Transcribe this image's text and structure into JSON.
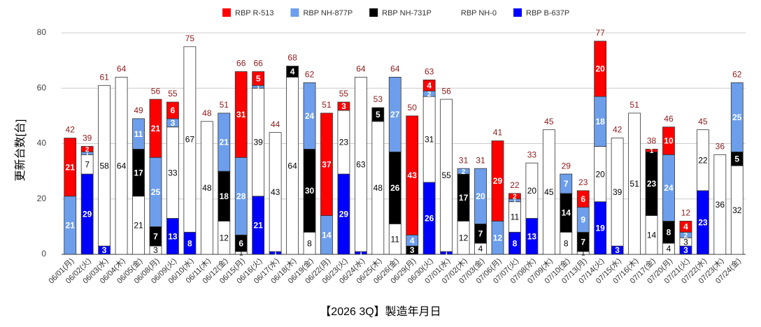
{
  "chart_data": {
    "type": "stacked-bar",
    "x_label": "【2026 3Q】製造年月日",
    "y_label": "更新台数[台]",
    "categories": [
      "06/01(月)",
      "06/02(火)",
      "06/03(水)",
      "06/04(木)",
      "06/05(金)",
      "06/08(月)",
      "06/09(火)",
      "06/10(水)",
      "06/11(木)",
      "06/12(金)",
      "06/15(月)",
      "06/16(火)",
      "06/17(水)",
      "06/18(木)",
      "06/19(金)",
      "06/22(月)",
      "06/23(火)",
      "06/24(水)",
      "06/25(木)",
      "06/26(金)",
      "06/29(月)",
      "06/30(火)",
      "07/01(水)",
      "07/02(木)",
      "07/03(金)",
      "07/06(月)",
      "07/07(火)",
      "07/08(水)",
      "07/09(木)",
      "07/10(金)",
      "07/13(月)",
      "07/14(火)",
      "07/15(水)",
      "07/16(木)",
      "07/17(金)",
      "07/20(月)",
      "07/21(火)",
      "07/22(水)",
      "07/23(木)",
      "07/24(金)"
    ],
    "series": [
      {
        "name": "RBP R-513",
        "color": "#ff0000",
        "values": [
          21,
          2,
          null,
          null,
          null,
          21,
          6,
          null,
          null,
          null,
          31,
          5,
          null,
          null,
          null,
          37,
          3,
          null,
          null,
          null,
          43,
          4,
          null,
          null,
          null,
          29,
          2,
          null,
          null,
          null,
          6,
          20,
          null,
          null,
          1,
          10,
          4,
          null,
          null,
          null
        ]
      },
      {
        "name": "RBP NH-877P",
        "color": "#6d9eeb",
        "values": [
          21,
          1,
          null,
          null,
          11,
          25,
          3,
          null,
          null,
          21,
          28,
          1,
          null,
          null,
          24,
          14,
          null,
          null,
          null,
          27,
          4,
          2,
          null,
          2,
          20,
          12,
          1,
          null,
          null,
          7,
          9,
          18,
          null,
          null,
          null,
          24,
          2,
          null,
          null,
          25
        ]
      },
      {
        "name": "RBP NH-731P",
        "color": "#000000",
        "values": [
          null,
          null,
          null,
          null,
          17,
          7,
          null,
          null,
          null,
          18,
          6,
          null,
          null,
          4,
          30,
          null,
          null,
          null,
          5,
          26,
          3,
          null,
          null,
          17,
          7,
          null,
          null,
          null,
          null,
          14,
          7,
          null,
          null,
          null,
          23,
          8,
          null,
          null,
          null,
          5
        ]
      },
      {
        "name": "RBP NH-0",
        "color": "#ffffff",
        "values": [
          null,
          7,
          58,
          64,
          21,
          3,
          33,
          67,
          48,
          12,
          1,
          39,
          43,
          64,
          8,
          null,
          23,
          63,
          48,
          11,
          null,
          31,
          55,
          12,
          4,
          null,
          11,
          20,
          45,
          8,
          1,
          20,
          39,
          51,
          14,
          4,
          3,
          22,
          36,
          32
        ]
      },
      {
        "name": "RBP B-637P",
        "color": "#0000ff",
        "values": [
          null,
          29,
          3,
          null,
          null,
          null,
          13,
          8,
          null,
          null,
          null,
          21,
          1,
          null,
          null,
          null,
          29,
          1,
          null,
          null,
          null,
          26,
          1,
          null,
          null,
          null,
          8,
          13,
          null,
          null,
          null,
          19,
          3,
          null,
          null,
          null,
          3,
          23,
          null,
          null
        ]
      }
    ],
    "totals": [
      42,
      39,
      61,
      64,
      49,
      56,
      55,
      75,
      48,
      51,
      66,
      66,
      44,
      68,
      62,
      51,
      55,
      64,
      53,
      64,
      50,
      63,
      56,
      31,
      31,
      41,
      22,
      33,
      45,
      29,
      23,
      77,
      42,
      51,
      38,
      46,
      12,
      45,
      36,
      62
    ],
    "ylim": [
      0,
      80
    ],
    "yticks": [
      0,
      20,
      40,
      60,
      80
    ],
    "grid": true,
    "legend": "top"
  }
}
